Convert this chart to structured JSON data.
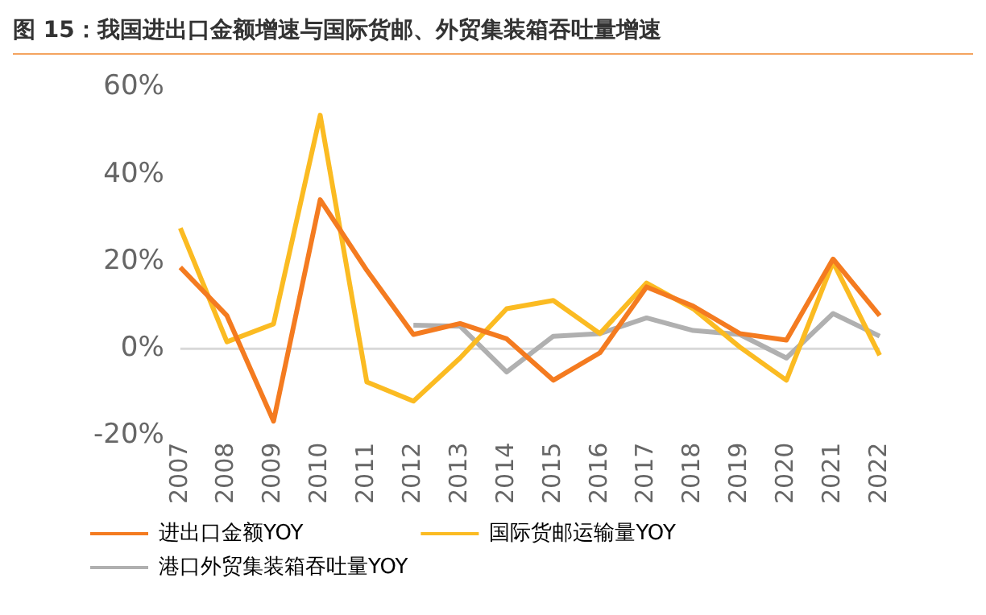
{
  "chart_data": {
    "type": "line",
    "title": "图 15：我国进出口金额增速与国际货邮、外贸集装箱吞吐量增速",
    "categories": [
      "2007",
      "2008",
      "2009",
      "2010",
      "2011",
      "2012",
      "2013",
      "2014",
      "2015",
      "2016",
      "2017",
      "2018",
      "2019",
      "2020",
      "2021",
      "2022"
    ],
    "series": [
      {
        "name": "进出口金额YOY",
        "color": "#f47b20",
        "values": [
          18.7,
          7.6,
          -16.6,
          34.2,
          18,
          3.3,
          5.8,
          2.3,
          -7.2,
          -0.9,
          14.2,
          9.8,
          3.5,
          2,
          20.6,
          7.6
        ]
      },
      {
        "name": "国际货邮运输量YOY",
        "color": "#fbbb22",
        "values": [
          27.7,
          1.6,
          5.7,
          53.6,
          -7.6,
          -12,
          -2.1,
          9.2,
          11.1,
          3.5,
          15.1,
          9.2,
          0.4,
          -7.2,
          19.9,
          -1.5
        ]
      },
      {
        "name": "港口外贸集装箱吞吐量YOY",
        "color": "#b0b0b0",
        "values": [
          null,
          null,
          null,
          null,
          null,
          5.4,
          5.2,
          -5.3,
          2.9,
          3.5,
          7.1,
          4.2,
          3.3,
          -2.1,
          8.1,
          2.9
        ]
      }
    ],
    "ylim": [
      -20,
      60
    ],
    "yticks": [
      {
        "value": -20,
        "label": "-20%"
      },
      {
        "value": 0,
        "label": "0%"
      },
      {
        "value": 20,
        "label": "20%"
      },
      {
        "value": 40,
        "label": "40%"
      },
      {
        "value": 60,
        "label": "60%"
      }
    ],
    "ref_lines": [
      {
        "axis": "y",
        "value": 0,
        "color": "#d9d9d9"
      }
    ],
    "grid": false,
    "legend": "bottom",
    "marker": "none",
    "line_style": "solid"
  }
}
